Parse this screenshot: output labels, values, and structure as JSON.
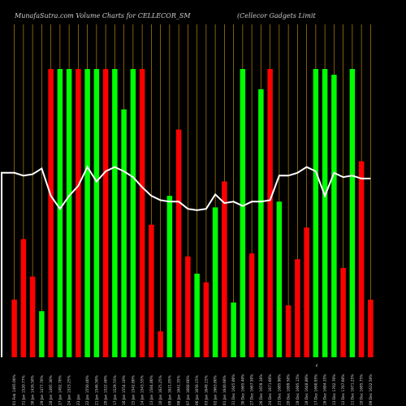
{
  "chart_data": {
    "type": "bar",
    "title_left": "MunafaSutra.com Volume Charts for CELLECOR_SM",
    "title_right": "(Cellecor Gadgets Limit",
    "colors": {
      "background": "#000000",
      "up": "#00ff00",
      "down": "#ff0000",
      "grid": "#b8860b",
      "line": "#ffffff",
      "text": "#cfcfcf"
    },
    "ylim": [
      0,
      100
    ],
    "categories": [
      "01 Feb 1495.00%",
      "31 Jan 1520.77%",
      "30 Jan 1426.50%",
      "29 Jan 1477.70%",
      "28 Jan 1495.30%",
      "27 Jan 1492.70%",
      "24 Jan 1523.25%",
      "23 Jan",
      "22 Jan 1550.40%",
      "21 Jan 1546.50%",
      "20 Jan 1522.40%",
      "17 Jan 1529.55%",
      "16 Jan 1554.10%",
      "15 Jan 1542.80%",
      "14 Jan 1543.55%",
      "13 Jan 1584.80%",
      "10 Jan 1625.25%",
      "09 Jan 1621.05%",
      "08 Jan 1641.35%",
      "07 Jan 1668.60%",
      "06 Jan 1656.15%",
      "03 Jan 1649.15%",
      "02 Jan 1663.80%",
      "01 Jan 1640.60%",
      "31 Dec 1645.00%",
      "30 Dec 1665.40%",
      "27 Dec 1667.50%",
      "26 Dec 1659.10%",
      "24 Dec 1671.60%",
      "23 Dec 1695.90%",
      "20 Dec 1699.50%",
      "19 Dec 1695.15%",
      "18 Dec 1648.80%",
      "17 Dec 1690.95%",
      "16 Dec 1684.35%",
      "13 Dec 1702.70%",
      "12 Dec 1707.60%",
      "11 Dec 1671.25%",
      "10 Dec 1695.75%",
      "09 Dec 1632.50%"
    ],
    "values": [
      20,
      41,
      28,
      16,
      100,
      100,
      100,
      100,
      100,
      100,
      100,
      100,
      86,
      100,
      100,
      46,
      9,
      56,
      79,
      35,
      29,
      26,
      52,
      61,
      19,
      100,
      36,
      93,
      100,
      54,
      18,
      34,
      45,
      100,
      100,
      98,
      31,
      100,
      68,
      20
    ],
    "colors_per_bar": [
      "down",
      "down",
      "down",
      "up",
      "down",
      "up",
      "up",
      "down",
      "up",
      "up",
      "down",
      "up",
      "up",
      "up",
      "down",
      "down",
      "down",
      "up",
      "down",
      "down",
      "up",
      "down",
      "up",
      "down",
      "up",
      "up",
      "down",
      "up",
      "down",
      "up",
      "down",
      "down",
      "down",
      "up",
      "up",
      "up",
      "down",
      "up",
      "down",
      "down"
    ],
    "line_values": [
      64,
      63,
      63.5,
      65.5,
      56,
      51.5,
      56,
      59.5,
      66,
      61,
      64.5,
      66,
      64.5,
      62.5,
      59,
      56,
      54.5,
      54,
      54,
      51.5,
      51,
      51.5,
      56.5,
      53.5,
      54,
      52.5,
      54,
      54,
      54.5,
      63,
      63,
      64,
      66,
      64.5,
      56,
      64,
      62.5,
      63,
      62,
      62
    ],
    "extra_label": "€"
  }
}
